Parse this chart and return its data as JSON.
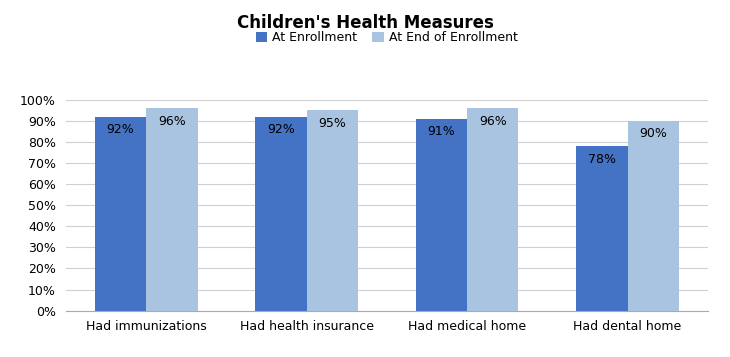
{
  "title": "Children's Health Measures",
  "categories": [
    "Had immunizations",
    "Had health insurance",
    "Had medical home",
    "Had dental home"
  ],
  "series": [
    {
      "name": "At Enrollment",
      "values": [
        0.92,
        0.92,
        0.91,
        0.78
      ],
      "color": "#4472C4",
      "labels": [
        "92%",
        "92%",
        "91%",
        "78%"
      ]
    },
    {
      "name": "At End of Enrollment",
      "values": [
        0.96,
        0.95,
        0.96,
        0.9
      ],
      "color": "#A8C4E0",
      "labels": [
        "96%",
        "95%",
        "96%",
        "90%"
      ]
    }
  ],
  "ylim": [
    0,
    1.0
  ],
  "yticks": [
    0,
    0.1,
    0.2,
    0.3,
    0.4,
    0.5,
    0.6,
    0.7,
    0.8,
    0.9,
    1.0
  ],
  "ytick_labels": [
    "0%",
    "10%",
    "20%",
    "30%",
    "40%",
    "50%",
    "60%",
    "70%",
    "80%",
    "90%",
    "100%"
  ],
  "bar_width": 0.32,
  "title_fontsize": 12,
  "tick_fontsize": 9,
  "legend_fontsize": 9,
  "bar_label_fontsize": 9,
  "background_color": "#ffffff",
  "grid_color": "#d0d0d0"
}
